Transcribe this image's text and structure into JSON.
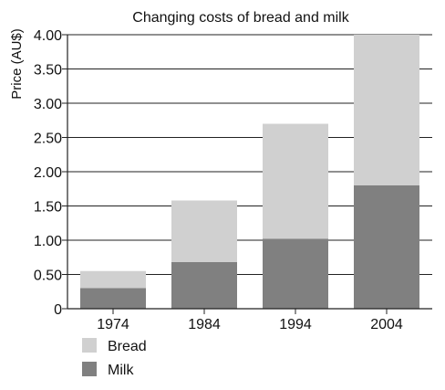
{
  "chart_data": {
    "type": "bar",
    "stacked": true,
    "title": "Changing costs of bread and milk",
    "xlabel": "",
    "ylabel": "Price (AU$)",
    "categories": [
      "1974",
      "1984",
      "1994",
      "2004"
    ],
    "series": [
      {
        "name": "Milk",
        "values": [
          0.3,
          0.68,
          1.02,
          1.8
        ],
        "color": "#808080"
      },
      {
        "name": "Bread",
        "values": [
          0.25,
          0.9,
          1.68,
          2.2
        ],
        "color": "#d0d0d0"
      }
    ],
    "ylim": [
      0,
      4.0
    ],
    "yticks": [
      "0",
      "0.50",
      "1.00",
      "1.50",
      "2.00",
      "2.50",
      "3.00",
      "3.50",
      "4.00"
    ],
    "grid": true,
    "legend": {
      "placement": "bottom-left",
      "items": [
        {
          "label": "Bread",
          "color": "#d0d0d0"
        },
        {
          "label": "Milk",
          "color": "#808080"
        }
      ]
    }
  }
}
